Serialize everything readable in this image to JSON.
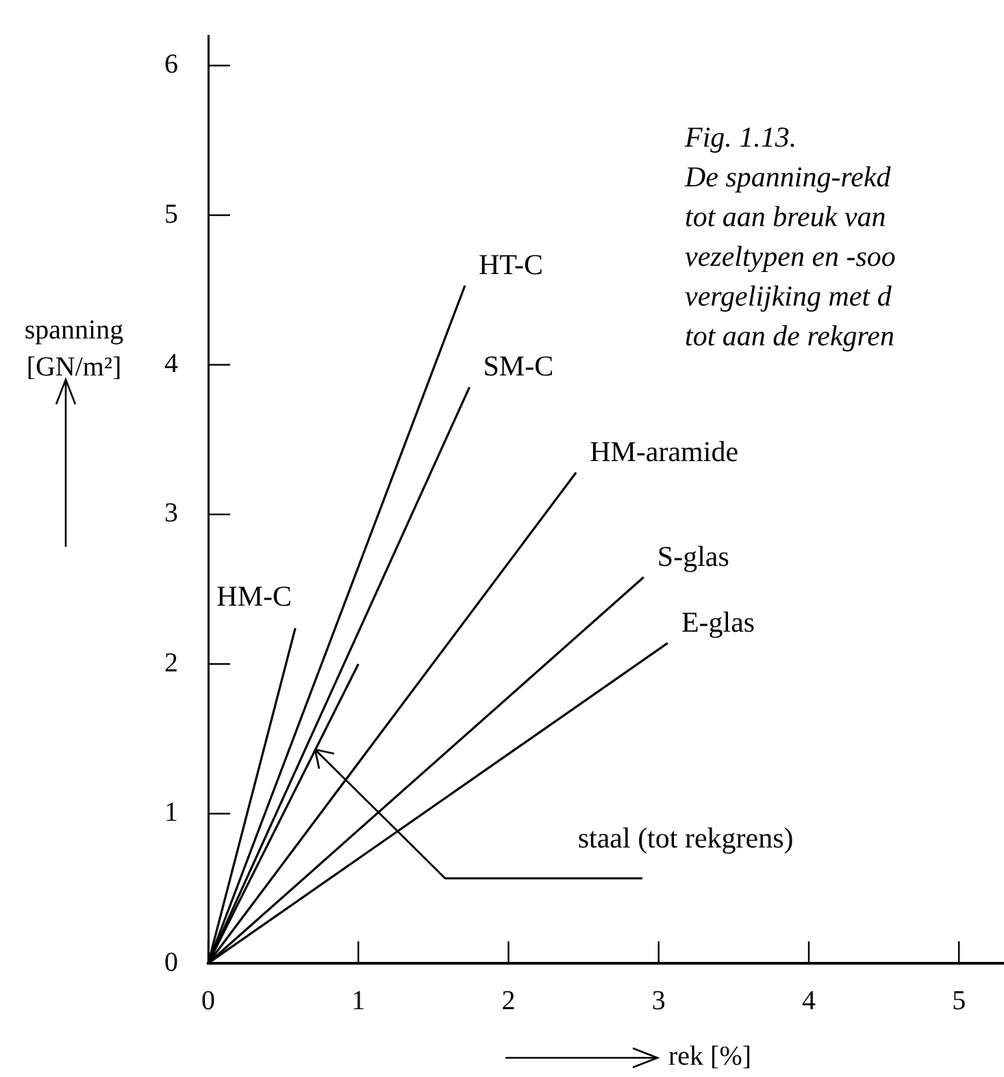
{
  "chart_data": {
    "type": "line",
    "title": "Fig. 1.13.",
    "subtitle": "De spanning-rekd\ntot aan breuk van\nvezeltypen en -soo\nvergelijking met d\ntot aan de rekgren",
    "xlabel": "rek [%]",
    "ylabel": "spanning [GN/m²]",
    "xlim": [
      0,
      5.3
    ],
    "ylim": [
      0,
      6.2
    ],
    "xticks": [
      0,
      1,
      2,
      3,
      4,
      5
    ],
    "yticks": [
      0,
      1,
      2,
      3,
      4,
      5,
      6
    ],
    "grid": false,
    "legend": false,
    "marker": "none",
    "line_style": "solid",
    "series": [
      {
        "name": "HM-C",
        "color": "#000000",
        "x": [
          0,
          0.58
        ],
        "values": [
          0,
          2.24
        ]
      },
      {
        "name": "HT-C",
        "color": "#000000",
        "x": [
          0,
          1.71
        ],
        "values": [
          0,
          4.53
        ]
      },
      {
        "name": "SM-C",
        "color": "#000000",
        "x": [
          0,
          1.74
        ],
        "values": [
          0,
          3.85
        ]
      },
      {
        "name": "HM-aramide",
        "color": "#000000",
        "x": [
          0,
          2.45
        ],
        "values": [
          0,
          3.28
        ]
      },
      {
        "name": "S-glas",
        "color": "#000000",
        "x": [
          0,
          2.9
        ],
        "values": [
          0,
          2.58
        ]
      },
      {
        "name": "E-glas",
        "color": "#000000",
        "x": [
          0,
          3.06
        ],
        "values": [
          0,
          2.14
        ]
      },
      {
        "color": "#000000",
        "x": [
          0,
          1.0
        ],
        "values": [
          0,
          2.0
        ]
      }
    ],
    "annotations": [
      {
        "text": "staal (tot rekgrens)",
        "x": 0.71,
        "y": 1.43
      }
    ]
  }
}
